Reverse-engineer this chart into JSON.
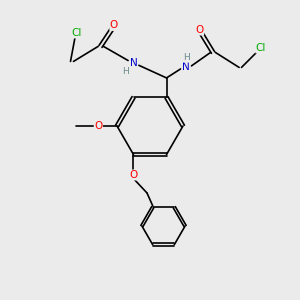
{
  "bg_color": "#ebebeb",
  "bond_color": "#000000",
  "bond_width": 1.2,
  "atom_colors": {
    "C": "#000000",
    "N": "#0000cd",
    "O": "#ff0000",
    "Cl": "#00aa00",
    "H": "#6a8a8a"
  },
  "font_size": 7.5,
  "fig_width": 3.0,
  "fig_height": 3.0,
  "dpi": 100
}
